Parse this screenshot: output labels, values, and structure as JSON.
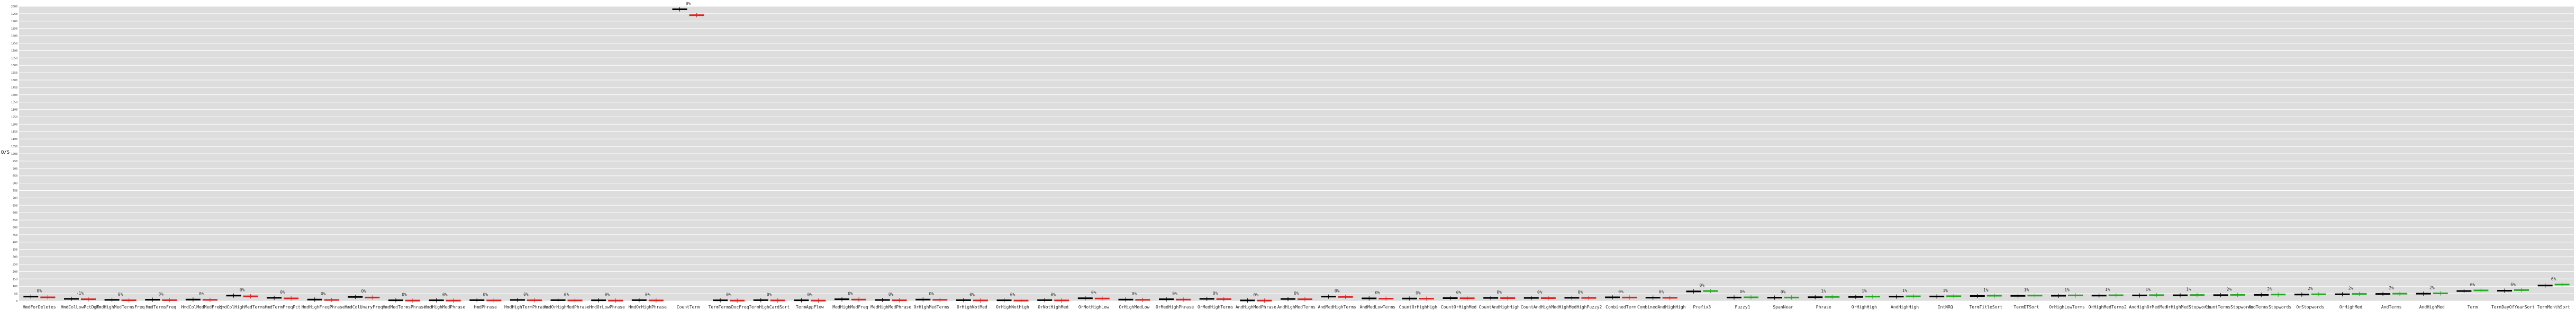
{
  "chart_data": {
    "type": "bar",
    "ylabel": "Q/S",
    "background": "#dddddd",
    "gridline_color": "#ffffff",
    "baseline_color": "#000000",
    "candidate_colors": {
      "better": "#22aa22",
      "worse": "#dd2222"
    },
    "grid": true,
    "categories": [
      "HmdForDeletes",
      "HmdColLowPctDgT",
      "HmdHighMedTermsFreq",
      "HmdTermsFreq",
      "HmdColMedMedFreq",
      "HmdColHighMedTerms",
      "HmdTermFreqPct",
      "HmdHighFreqPhrase",
      "HmdColUnaryFreq",
      "HmdMedTermsPhrase",
      "HmdHighMedPhrase",
      "HmdPhrase",
      "HmdHighTermPhrase",
      "HmdOrHighMedPhrase",
      "HmdOrLowPhrase",
      "HmdOrHighPhrase",
      "CountTerm",
      "TermTermsDocFreq",
      "TermHighCardSort",
      "TermAppFlow",
      "MedHighMedFreq",
      "MedHighMedPhrase",
      "OrHighMedTerms",
      "OrHighNotMed",
      "OrHighNotHigh",
      "OrNotHighMed",
      "OrNotHighLow",
      "OrHighMedLow",
      "OrMedHighPhrase",
      "OrMedHighTerms",
      "AndHighMedPhrase",
      "AndHighMedTerms",
      "AndMedHighTerms",
      "AndMedLowTerms",
      "CountOrHighHigh",
      "CountOrHighMed",
      "CountAndHighHigh",
      "CountAndHighMed",
      "HighMedHighFuzzy2",
      "CombinedTerm",
      "CombinedAndHighHigh",
      "Prefix3",
      "Fuzzy1",
      "SpanNear",
      "Phrase",
      "OrHighHigh",
      "AndHighHigh",
      "IntNRQ",
      "TermTitleSort",
      "TermDTSort",
      "OrHighLowTerms",
      "OrHighMedTerms2",
      "AndHighOrMedMed",
      "OrHighMedStopwords",
      "CountTermsStopwords",
      "AndTermsStopwords",
      "OrStopwords",
      "OrHighMed",
      "AndTerms",
      "AndHighMed",
      "Term",
      "TermDayOfYearSort",
      "TermMonthSort"
    ],
    "series": [
      {
        "values": [
          30,
          15,
          8,
          9,
          10,
          37,
          22,
          10,
          28,
          5,
          5,
          6,
          7,
          6,
          5,
          6,
          1980,
          5,
          6,
          5,
          12,
          7,
          10,
          6,
          5,
          6,
          19,
          10,
          12,
          15,
          4,
          14,
          30,
          18,
          17,
          20,
          21,
          21,
          22,
          25,
          23,
          65,
          24,
          23,
          26,
          28,
          30,
          31,
          34,
          35,
          36,
          37,
          38,
          39,
          40,
          42,
          44,
          46,
          48,
          50,
          68,
          70,
          105
        ]
      },
      {
        "values": [
          25,
          12,
          5,
          6,
          8,
          32,
          18,
          7,
          24,
          3,
          3,
          4,
          5,
          4,
          3,
          4,
          1940,
          3,
          4,
          3,
          10,
          5,
          8,
          4,
          3,
          4,
          17,
          8,
          10,
          13,
          3,
          12,
          28,
          16,
          16,
          19,
          20,
          20,
          21,
          24,
          22,
          68,
          25,
          24,
          28,
          30,
          32,
          33,
          36,
          37,
          38,
          39,
          40,
          41,
          42,
          44,
          46,
          48,
          50,
          52,
          72,
          74,
          112
        ]
      }
    ],
    "data_labels": [
      "0%",
      "-1%",
      "0%",
      "0%",
      "0%",
      "0%",
      "0%",
      "0%",
      "0%",
      "0%",
      "0%",
      "0%",
      "0%",
      "0%",
      "0%",
      "0%",
      "0%",
      "0%",
      "0%",
      "0%",
      "0%",
      "0%",
      "0%",
      "0%",
      "0%",
      "0%",
      "0%",
      "0%",
      "0%",
      "0%",
      "0%",
      "0%",
      "0%",
      "0%",
      "0%",
      "0%",
      "0%",
      "0%",
      "0%",
      "0%",
      "0%",
      "0%",
      "0%",
      "0%",
      "1%",
      "1%",
      "1%",
      "1%",
      "1%",
      "1%",
      "1%",
      "1%",
      "1%",
      "1%",
      "2%",
      "2%",
      "2%",
      "2%",
      "2%",
      "2%",
      "6%",
      "6%",
      "6%"
    ],
    "ylim": [
      0,
      2000
    ],
    "y_tick_step": 50
  }
}
